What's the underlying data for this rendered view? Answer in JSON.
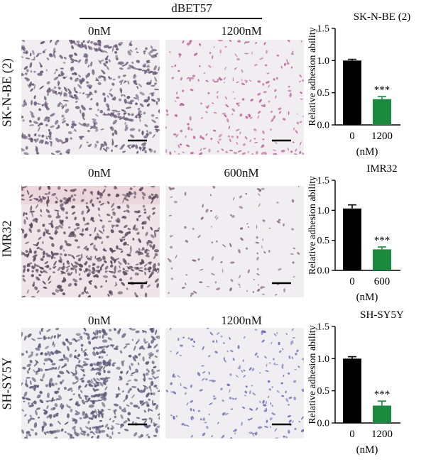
{
  "figure": {
    "compound_label": "dBET57",
    "rows": [
      {
        "cell_line": "SK-N-BE (2)",
        "ctrl_label": "0nM",
        "treat_label": "1200nM",
        "ctrl_color": "#6b5a78",
        "treat_color": "#c0609a"
      },
      {
        "cell_line": "IMR32",
        "ctrl_label": "0nM",
        "treat_label": "600nM",
        "ctrl_color": "#5b4a5e",
        "treat_color": "#8a6a78"
      },
      {
        "cell_line": "SH-SY5Y",
        "ctrl_label": "0nM",
        "treat_label": "1200nM",
        "ctrl_color": "#5d5a78",
        "treat_color": "#7468b8"
      }
    ]
  },
  "chart_data": [
    {
      "type": "bar",
      "title": "SK-N-BE (2)",
      "categories": [
        "0",
        "1200"
      ],
      "values": [
        1.0,
        0.4
      ],
      "errors": [
        0.02,
        0.04
      ],
      "colors": [
        "#000000",
        "#1a8a3e"
      ],
      "significance": [
        "",
        "***"
      ],
      "ylabel": "Relative adhesion ability",
      "xlabel": "(nM)",
      "ylim": [
        0,
        1.5
      ],
      "yticks": [
        "0.0",
        "0.5",
        "1.0",
        "1.5"
      ]
    },
    {
      "type": "bar",
      "title": "IMR32",
      "categories": [
        "0",
        "600"
      ],
      "values": [
        1.03,
        0.35
      ],
      "errors": [
        0.06,
        0.04
      ],
      "colors": [
        "#000000",
        "#1a8a3e"
      ],
      "significance": [
        "",
        "***"
      ],
      "ylabel": "Relative adhesion ability",
      "xlabel": "(nM)",
      "ylim": [
        0,
        1.5
      ],
      "yticks": [
        "0.0",
        "0.5",
        "1.0",
        "1.5"
      ]
    },
    {
      "type": "bar",
      "title": "SH-SY5Y",
      "categories": [
        "0",
        "1200"
      ],
      "values": [
        1.0,
        0.27
      ],
      "errors": [
        0.03,
        0.07
      ],
      "colors": [
        "#000000",
        "#1a8a3e"
      ],
      "significance": [
        "",
        "***"
      ],
      "ylabel": "Relative adhesion ability",
      "xlabel": "(nM)",
      "ylim": [
        0,
        1.5
      ],
      "yticks": [
        "0.0",
        "0.5",
        "1.0",
        "1.5"
      ]
    }
  ]
}
